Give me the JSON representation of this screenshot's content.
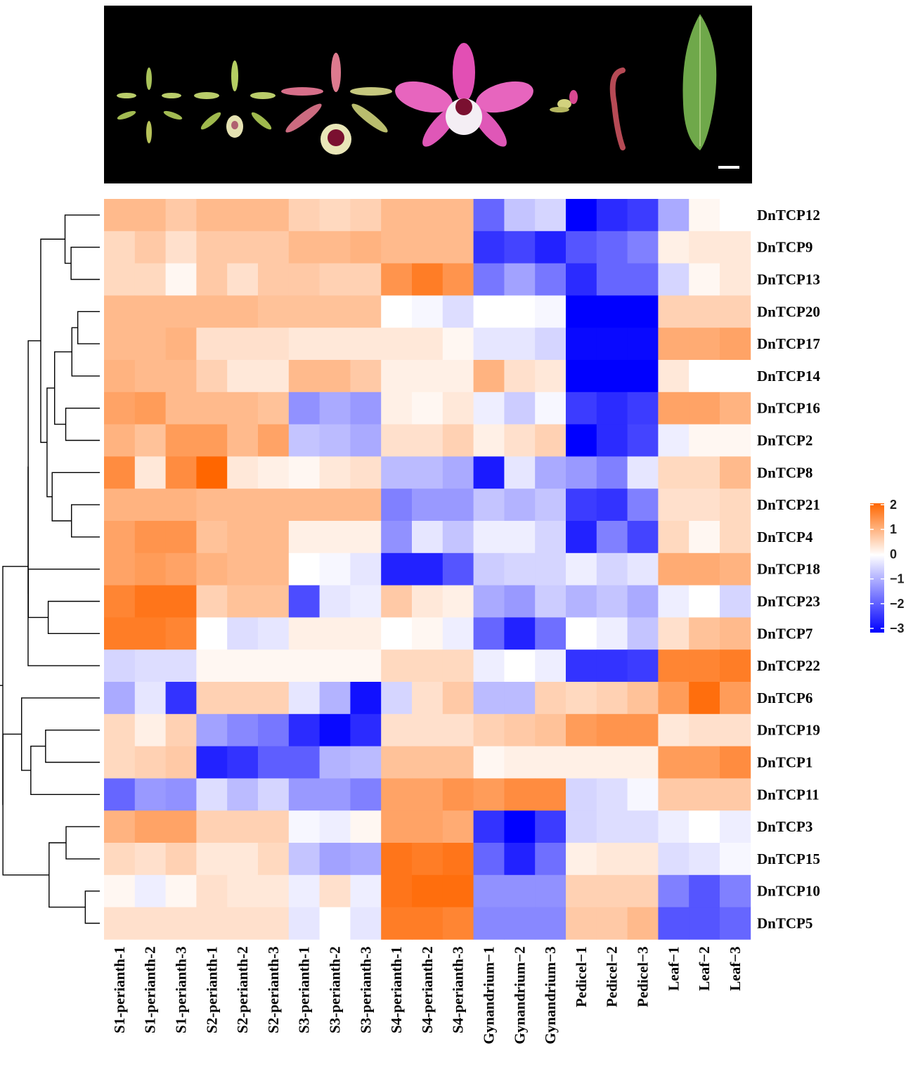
{
  "chart_data": {
    "type": "heatmap",
    "title": "",
    "rows": [
      "DnTCP12",
      "DnTCP9",
      "DnTCP13",
      "DnTCP20",
      "DnTCP17",
      "DnTCP14",
      "DnTCP16",
      "DnTCP2",
      "DnTCP8",
      "DnTCP21",
      "DnTCP4",
      "DnTCP18",
      "DnTCP23",
      "DnTCP7",
      "DnTCP22",
      "DnTCP6",
      "DnTCP19",
      "DnTCP1",
      "DnTCP11",
      "DnTCP3",
      "DnTCP15",
      "DnTCP10",
      "DnTCP5"
    ],
    "columns": [
      "S1-perianth-1",
      "S1-perianth-2",
      "S1-perianth-3",
      "S2-perianth-1",
      "S2-perianth-2",
      "S2-perianth-3",
      "S3-perianth-1",
      "S3-perianth-2",
      "S3-perianth-3",
      "S4-perianth-1",
      "S4-perianth-2",
      "S4-perianth-3",
      "Gynandrium−1",
      "Gynandrium−2",
      "Gynandrium−3",
      "Pedicel−1",
      "Pedicel−2",
      "Pedicel−3",
      "Leaf−1",
      "Leaf−2",
      "Leaf−3"
    ],
    "values": [
      [
        0.9,
        0.9,
        0.7,
        0.9,
        0.9,
        0.9,
        0.6,
        0.5,
        0.6,
        0.9,
        0.9,
        0.9,
        -1.8,
        -0.7,
        -0.5,
        -3.0,
        -2.5,
        -2.3,
        -1.0,
        0.1,
        0.0
      ],
      [
        0.5,
        0.7,
        0.4,
        0.7,
        0.7,
        0.7,
        0.9,
        0.9,
        1.0,
        0.9,
        0.9,
        0.9,
        -2.4,
        -2.2,
        -2.6,
        -2.0,
        -1.8,
        -1.5,
        0.2,
        0.3,
        0.3
      ],
      [
        0.5,
        0.5,
        0.1,
        0.7,
        0.4,
        0.7,
        0.7,
        0.6,
        0.6,
        1.4,
        1.7,
        1.4,
        -1.6,
        -1.1,
        -1.6,
        -2.5,
        -1.8,
        -1.8,
        -0.5,
        0.1,
        0.3
      ],
      [
        0.9,
        0.9,
        0.9,
        0.9,
        0.9,
        0.8,
        0.8,
        0.8,
        0.8,
        0.0,
        -0.1,
        -0.4,
        0.0,
        0.0,
        -0.1,
        -3.0,
        -3.0,
        -3.0,
        0.6,
        0.6,
        0.6
      ],
      [
        0.9,
        0.9,
        1.0,
        0.4,
        0.4,
        0.4,
        0.3,
        0.3,
        0.3,
        0.3,
        0.3,
        0.1,
        -0.3,
        -0.3,
        -0.5,
        -2.9,
        -2.9,
        -2.9,
        1.1,
        1.1,
        1.2
      ],
      [
        1.0,
        0.9,
        0.9,
        0.6,
        0.3,
        0.3,
        0.9,
        0.9,
        0.7,
        0.2,
        0.2,
        0.2,
        1.0,
        0.4,
        0.3,
        -3.0,
        -3.0,
        -3.0,
        0.3,
        0.0,
        0.0
      ],
      [
        1.2,
        1.3,
        0.9,
        0.9,
        0.9,
        0.8,
        -1.3,
        -1.0,
        -1.2,
        0.2,
        0.1,
        0.3,
        -0.2,
        -0.6,
        -0.1,
        -2.3,
        -2.5,
        -2.3,
        1.2,
        1.2,
        1.0
      ],
      [
        1.0,
        0.8,
        1.3,
        1.3,
        0.9,
        1.2,
        -0.7,
        -0.8,
        -1.0,
        0.4,
        0.4,
        0.6,
        0.2,
        0.4,
        0.6,
        -3.0,
        -2.5,
        -2.2,
        -0.2,
        0.1,
        0.1
      ],
      [
        1.5,
        0.3,
        1.5,
        2.0,
        0.3,
        0.2,
        0.1,
        0.3,
        0.4,
        -0.8,
        -0.8,
        -1.0,
        -2.7,
        -0.3,
        -1.0,
        -1.2,
        -1.5,
        -0.3,
        0.5,
        0.5,
        0.9
      ],
      [
        1.0,
        1.0,
        1.0,
        0.9,
        0.9,
        0.9,
        0.9,
        0.9,
        0.9,
        -1.5,
        -1.2,
        -1.2,
        -0.7,
        -0.9,
        -0.7,
        -2.3,
        -2.4,
        -1.5,
        0.4,
        0.4,
        0.5
      ],
      [
        1.2,
        1.4,
        1.4,
        0.8,
        0.9,
        0.9,
        0.2,
        0.2,
        0.2,
        -1.3,
        -0.3,
        -0.7,
        -0.2,
        -0.2,
        -0.5,
        -2.6,
        -1.5,
        -2.2,
        0.5,
        0.1,
        0.5
      ],
      [
        1.2,
        1.3,
        1.2,
        1.0,
        0.9,
        0.9,
        0.0,
        -0.1,
        -0.3,
        -2.6,
        -2.6,
        -2.0,
        -0.6,
        -0.5,
        -0.5,
        -0.2,
        -0.5,
        -0.3,
        1.1,
        1.1,
        1.0
      ],
      [
        1.6,
        1.8,
        1.8,
        0.6,
        0.8,
        0.8,
        -2.1,
        -0.3,
        -0.2,
        0.7,
        0.3,
        0.2,
        -1.0,
        -1.2,
        -0.6,
        -0.9,
        -0.7,
        -1.0,
        -0.2,
        0.0,
        -0.5
      ],
      [
        1.7,
        1.7,
        1.6,
        0.0,
        -0.4,
        -0.3,
        0.2,
        0.2,
        0.2,
        0.0,
        0.1,
        -0.2,
        -1.8,
        -2.6,
        -1.7,
        0.0,
        -0.2,
        -0.7,
        0.4,
        0.8,
        0.9
      ],
      [
        -0.5,
        -0.4,
        -0.4,
        0.1,
        0.1,
        0.1,
        0.1,
        0.1,
        0.1,
        0.5,
        0.5,
        0.5,
        -0.2,
        0.0,
        -0.2,
        -2.4,
        -2.4,
        -2.3,
        1.6,
        1.6,
        1.7
      ],
      [
        -1.0,
        -0.3,
        -2.4,
        0.6,
        0.6,
        0.6,
        -0.3,
        -0.9,
        -2.8,
        -0.5,
        0.4,
        0.7,
        -0.8,
        -0.8,
        0.6,
        0.5,
        0.6,
        0.8,
        1.3,
        1.9,
        1.3
      ],
      [
        0.5,
        0.2,
        0.6,
        -1.1,
        -1.4,
        -1.6,
        -2.5,
        -2.9,
        -2.5,
        0.4,
        0.4,
        0.4,
        0.6,
        0.7,
        0.8,
        1.3,
        1.4,
        1.4,
        0.3,
        0.4,
        0.4
      ],
      [
        0.5,
        0.6,
        0.7,
        -2.6,
        -2.4,
        -1.9,
        -1.9,
        -0.9,
        -0.8,
        0.8,
        0.8,
        0.8,
        0.1,
        0.2,
        0.2,
        0.2,
        0.2,
        0.2,
        1.3,
        1.3,
        1.5
      ],
      [
        -1.8,
        -1.2,
        -1.3,
        -0.4,
        -0.8,
        -0.5,
        -1.2,
        -1.2,
        -1.5,
        1.2,
        1.2,
        1.4,
        1.3,
        1.5,
        1.5,
        -0.5,
        -0.4,
        -0.1,
        0.7,
        0.7,
        0.7
      ],
      [
        1.0,
        1.2,
        1.2,
        0.6,
        0.6,
        0.6,
        -0.1,
        -0.2,
        0.1,
        1.2,
        1.2,
        1.1,
        -2.4,
        -3.0,
        -2.3,
        -0.5,
        -0.4,
        -0.4,
        -0.2,
        0.0,
        -0.2
      ],
      [
        0.5,
        0.4,
        0.6,
        0.3,
        0.3,
        0.5,
        -0.7,
        -1.1,
        -1.0,
        1.8,
        1.7,
        1.8,
        -1.8,
        -2.6,
        -1.7,
        0.2,
        0.3,
        0.3,
        -0.4,
        -0.3,
        -0.1
      ],
      [
        0.1,
        -0.2,
        0.1,
        0.4,
        0.3,
        0.3,
        -0.2,
        0.4,
        -0.2,
        1.8,
        1.9,
        1.9,
        -1.3,
        -1.3,
        -1.3,
        0.6,
        0.6,
        0.6,
        -1.5,
        -2.0,
        -1.5
      ],
      [
        0.4,
        0.4,
        0.4,
        0.4,
        0.4,
        0.4,
        -0.3,
        0.0,
        -0.3,
        1.7,
        1.7,
        1.6,
        -1.4,
        -1.4,
        -1.4,
        0.7,
        0.7,
        0.9,
        -2.0,
        -2.0,
        -1.8
      ]
    ],
    "color_scale": {
      "min": -3,
      "max": 2,
      "low": "#0000ff",
      "mid": "#ffffff",
      "high": "#ff6600"
    },
    "legend_ticks": [
      2,
      1,
      0,
      -1,
      -2,
      -3
    ],
    "legend_labels": [
      "2",
      "1",
      "0",
      "−1",
      "−2",
      "−3"
    ],
    "legend_placement": "right",
    "dendrogram": "rows"
  }
}
